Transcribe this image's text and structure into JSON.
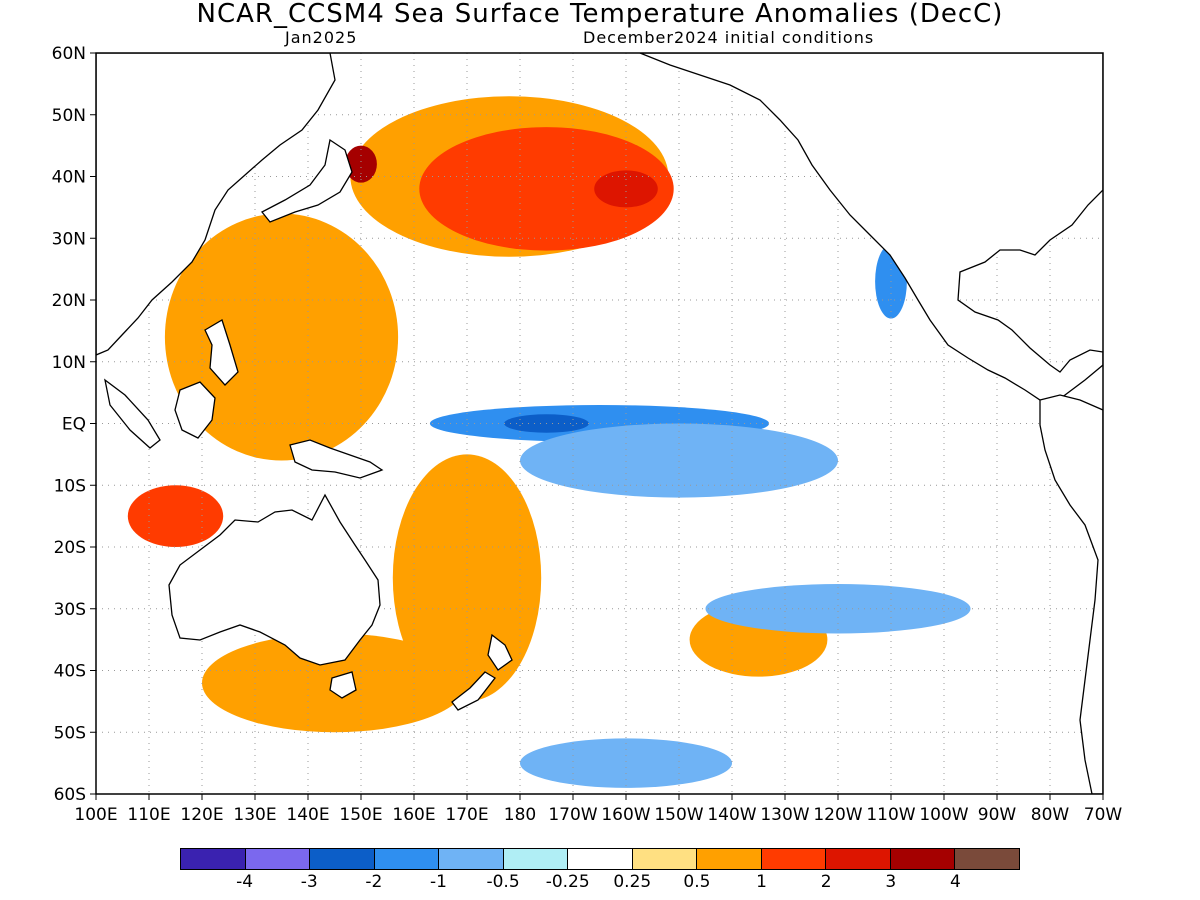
{
  "title": "NCAR_CCSM4 Sea Surface Temperature Anomalies (DecC)",
  "subtitle_left": "Jan2025",
  "subtitle_right": "December2024 initial conditions",
  "y_ticks": [
    "60N",
    "50N",
    "40N",
    "30N",
    "20N",
    "10N",
    "EQ",
    "10S",
    "20S",
    "30S",
    "40S",
    "50S",
    "60S"
  ],
  "x_ticks": [
    "100E",
    "110E",
    "120E",
    "130E",
    "140E",
    "150E",
    "160E",
    "170E",
    "180",
    "170W",
    "160W",
    "150W",
    "140W",
    "130W",
    "120W",
    "110W",
    "100W",
    "90W",
    "80W",
    "70W"
  ],
  "extent": {
    "lon_min": 100,
    "lon_max": 290,
    "lat_min": -60,
    "lat_max": 60
  },
  "colorbar": {
    "colors": [
      "#3a22b0",
      "#7b68ee",
      "#0c5ec8",
      "#2f8ff0",
      "#6fb3f5",
      "#b0eef5",
      "#ffffff",
      "#ffe082",
      "#ffa000",
      "#ff3b00",
      "#dd1500",
      "#a50000",
      "#7a4a3a"
    ],
    "labels": [
      "-4",
      "-3",
      "-2",
      "-1",
      "-0.5",
      "-0.25",
      "0.25",
      "0.5",
      "1",
      "2",
      "3",
      "4"
    ]
  },
  "anomaly_regions": [
    {
      "level": "0.5",
      "lon": 135,
      "lat": 14,
      "rx": 22,
      "ry": 20
    },
    {
      "level": "0.5",
      "lon": 178,
      "lat": 40,
      "rx": 30,
      "ry": 13
    },
    {
      "level": "0.5",
      "lon": 170,
      "lat": -25,
      "rx": 14,
      "ry": 20
    },
    {
      "level": "0.5",
      "lon": 145,
      "lat": -42,
      "rx": 25,
      "ry": 8
    },
    {
      "level": "0.5",
      "lon": 225,
      "lat": -35,
      "rx": 13,
      "ry": 6
    },
    {
      "level": "1",
      "lon": 185,
      "lat": 38,
      "rx": 24,
      "ry": 10
    },
    {
      "level": "1",
      "lon": 115,
      "lat": -15,
      "rx": 9,
      "ry": 5
    },
    {
      "level": "2",
      "lon": 200,
      "lat": 38,
      "rx": 6,
      "ry": 3
    },
    {
      "level": "3",
      "lon": 150,
      "lat": 42,
      "rx": 3,
      "ry": 3
    },
    {
      "level": "-1",
      "lon": 195,
      "lat": 0,
      "rx": 32,
      "ry": 3
    },
    {
      "level": "-2",
      "lon": 185,
      "lat": 0,
      "rx": 8,
      "ry": 1.5
    },
    {
      "level": "-1",
      "lon": 250,
      "lat": 23,
      "rx": 3,
      "ry": 6
    },
    {
      "level": "-0.5",
      "lon": 210,
      "lat": -6,
      "rx": 30,
      "ry": 6
    },
    {
      "level": "-0.5",
      "lon": 240,
      "lat": -30,
      "rx": 25,
      "ry": 4
    },
    {
      "level": "-0.5",
      "lon": 200,
      "lat": -55,
      "rx": 20,
      "ry": 4
    }
  ]
}
